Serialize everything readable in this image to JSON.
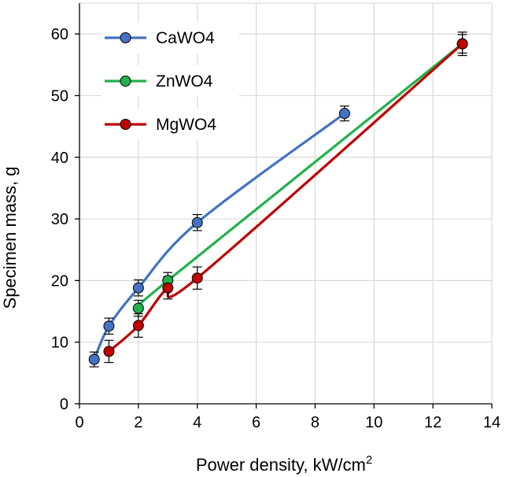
{
  "chart_data": {
    "type": "line",
    "xlabel": "Power density, kW/cm",
    "xlabel_superscript": "2",
    "ylabel": "Specimen mass, g",
    "xlim": [
      0,
      14
    ],
    "ylim": [
      0,
      65
    ],
    "x_ticks": [
      0,
      2,
      4,
      6,
      8,
      10,
      12,
      14
    ],
    "y_ticks": [
      0,
      10,
      20,
      30,
      40,
      50,
      60
    ],
    "grid": true,
    "legend_position": "top-left",
    "series": [
      {
        "name": "CaWO4",
        "color": "#4472C4",
        "x": [
          0.5,
          1,
          2,
          4,
          9
        ],
        "y": [
          7.2,
          12.6,
          18.8,
          29.4,
          47.1
        ],
        "err": [
          1.2,
          1.3,
          1.3,
          1.3,
          1.2
        ]
      },
      {
        "name": "ZnWO4",
        "color": "#22B14C",
        "x": [
          2,
          3,
          13
        ],
        "y": [
          15.5,
          20.0,
          58.4
        ],
        "err": [
          1.3,
          1.3,
          1.5
        ]
      },
      {
        "name": "MgWO4",
        "color": "#C00000",
        "x": [
          1,
          2,
          3,
          4,
          13
        ],
        "y": [
          8.5,
          12.7,
          18.8,
          20.4,
          58.4
        ],
        "err": [
          1.8,
          1.9,
          1.8,
          1.8,
          1.9
        ]
      }
    ]
  }
}
